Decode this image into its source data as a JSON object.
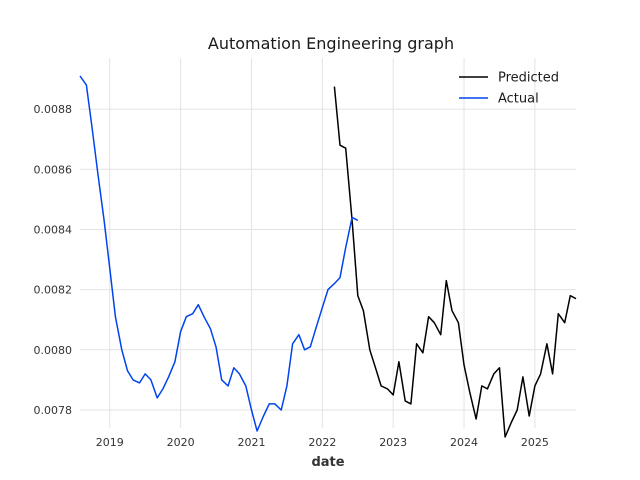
{
  "chart_data": {
    "type": "line",
    "title": "Automation Engineering graph",
    "xlabel": "date",
    "ylabel": "",
    "xlim": [
      2018.58,
      2025.58
    ],
    "ylim": [
      0.00774,
      0.00897
    ],
    "x_ticks": [
      2019,
      2020,
      2021,
      2022,
      2023,
      2024,
      2025
    ],
    "x_tick_labels": [
      "2019",
      "2020",
      "2021",
      "2022",
      "2023",
      "2024",
      "2025"
    ],
    "y_ticks": [
      0.0078,
      0.008,
      0.0082,
      0.0084,
      0.0086,
      0.0088
    ],
    "y_tick_labels": [
      "0.0078",
      "0.0080",
      "0.0082",
      "0.0084",
      "0.0086",
      "0.0088"
    ],
    "grid": true,
    "legend_position": "top-right",
    "series": [
      {
        "name": "Predicted",
        "color": "#000000",
        "x": [
          2022.17,
          2022.25,
          2022.33,
          2022.42,
          2022.5,
          2022.58,
          2022.67,
          2022.75,
          2022.83,
          2022.92,
          2023.0,
          2023.08,
          2023.17,
          2023.25,
          2023.33,
          2023.42,
          2023.5,
          2023.58,
          2023.67,
          2023.75,
          2023.83,
          2023.92,
          2024.0,
          2024.08,
          2024.17,
          2024.25,
          2024.33,
          2024.42,
          2024.5,
          2024.58,
          2024.67,
          2024.75,
          2024.83,
          2024.92,
          2025.0,
          2025.08,
          2025.17,
          2025.25,
          2025.33,
          2025.42,
          2025.5,
          2025.58
        ],
        "values": [
          0.008875,
          0.00868,
          0.00867,
          0.00843,
          0.00818,
          0.00813,
          0.008,
          0.00794,
          0.00788,
          0.00787,
          0.00785,
          0.00796,
          0.00783,
          0.00782,
          0.00802,
          0.00799,
          0.00811,
          0.00809,
          0.00805,
          0.00823,
          0.00813,
          0.00809,
          0.00795,
          0.00786,
          0.00777,
          0.00788,
          0.00787,
          0.00792,
          0.00794,
          0.00771,
          0.00776,
          0.0078,
          0.00791,
          0.00778,
          0.00788,
          0.00792,
          0.00802,
          0.00792,
          0.00812,
          0.00809,
          0.00818,
          0.00817
        ]
      },
      {
        "name": "Actual",
        "color": "#0044ee",
        "x": [
          2018.58,
          2018.67,
          2018.75,
          2018.83,
          2018.92,
          2019.0,
          2019.08,
          2019.17,
          2019.25,
          2019.33,
          2019.42,
          2019.5,
          2019.58,
          2019.67,
          2019.75,
          2019.83,
          2019.92,
          2020.0,
          2020.08,
          2020.17,
          2020.25,
          2020.33,
          2020.42,
          2020.5,
          2020.58,
          2020.67,
          2020.75,
          2020.83,
          2020.92,
          2021.0,
          2021.08,
          2021.17,
          2021.25,
          2021.33,
          2021.42,
          2021.5,
          2021.58,
          2021.67,
          2021.75,
          2021.83,
          2021.92,
          2022.0,
          2022.08,
          2022.17,
          2022.25,
          2022.33,
          2022.42,
          2022.5
        ],
        "values": [
          0.00891,
          0.00888,
          0.00874,
          0.00859,
          0.00843,
          0.00827,
          0.00811,
          0.008,
          0.00793,
          0.0079,
          0.00789,
          0.00792,
          0.0079,
          0.00784,
          0.00787,
          0.00791,
          0.00796,
          0.00806,
          0.00811,
          0.00812,
          0.00815,
          0.00811,
          0.00807,
          0.00801,
          0.0079,
          0.00788,
          0.00794,
          0.00792,
          0.00788,
          0.0078,
          0.00773,
          0.00778,
          0.00782,
          0.00782,
          0.0078,
          0.00788,
          0.00802,
          0.00805,
          0.008,
          0.00801,
          0.00808,
          0.00814,
          0.0082,
          0.00822,
          0.00824,
          0.00834,
          0.00844,
          0.00843
        ]
      }
    ]
  }
}
